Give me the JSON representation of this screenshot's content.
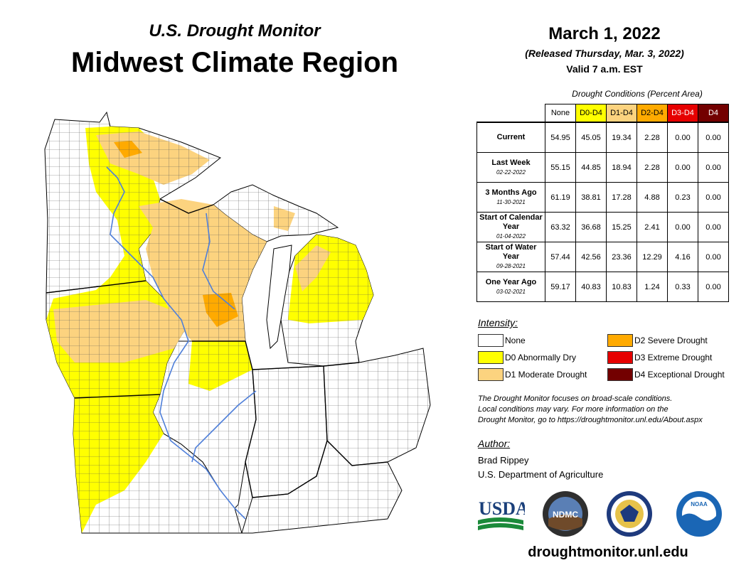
{
  "header": {
    "subtitle": "U.S. Drought Monitor",
    "title": "Midwest Climate Region",
    "date": "March 1, 2022",
    "released": "(Released Thursday, Mar. 3, 2022)",
    "valid": "Valid 7 a.m. EST"
  },
  "table": {
    "caption": "Drought Conditions (Percent Area)",
    "columns": [
      {
        "label": "None",
        "bg": "#ffffff",
        "fg": "#000000"
      },
      {
        "label": "D0-D4",
        "bg": "#ffff00",
        "fg": "#000000"
      },
      {
        "label": "D1-D4",
        "bg": "#fcd37f",
        "fg": "#000000"
      },
      {
        "label": "D2-D4",
        "bg": "#ffaa00",
        "fg": "#000000"
      },
      {
        "label": "D3-D4",
        "bg": "#e60000",
        "fg": "#ffffff"
      },
      {
        "label": "D4",
        "bg": "#730000",
        "fg": "#ffffff"
      }
    ],
    "rows": [
      {
        "label": "Current",
        "date": "",
        "values": [
          "54.95",
          "45.05",
          "19.34",
          "2.28",
          "0.00",
          "0.00"
        ]
      },
      {
        "label": "Last Week",
        "date": "02-22-2022",
        "values": [
          "55.15",
          "44.85",
          "18.94",
          "2.28",
          "0.00",
          "0.00"
        ]
      },
      {
        "label": "3 Months Ago",
        "date": "11-30-2021",
        "values": [
          "61.19",
          "38.81",
          "17.28",
          "4.88",
          "0.23",
          "0.00"
        ]
      },
      {
        "label": "Start of Calendar Year",
        "date": "01-04-2022",
        "values": [
          "63.32",
          "36.68",
          "15.25",
          "2.41",
          "0.00",
          "0.00"
        ]
      },
      {
        "label": "Start of Water Year",
        "date": "09-28-2021",
        "values": [
          "57.44",
          "42.56",
          "23.36",
          "12.29",
          "4.16",
          "0.00"
        ]
      },
      {
        "label": "One Year Ago",
        "date": "03-02-2021",
        "values": [
          "59.17",
          "40.83",
          "10.83",
          "1.24",
          "0.33",
          "0.00"
        ]
      }
    ]
  },
  "legend": {
    "heading": "Intensity:",
    "items": [
      {
        "label": "None",
        "color": "#ffffff"
      },
      {
        "label": "D0 Abnormally Dry",
        "color": "#ffff00"
      },
      {
        "label": "D1 Moderate Drought",
        "color": "#fcd37f"
      },
      {
        "label": "D2 Severe Drought",
        "color": "#ffaa00"
      },
      {
        "label": "D3 Extreme Drought",
        "color": "#e60000"
      },
      {
        "label": "D4 Exceptional Drought",
        "color": "#730000"
      }
    ]
  },
  "note": {
    "line1": "The Drought Monitor focuses on broad-scale conditions.",
    "line2": "Local conditions may vary. For more information on the",
    "line3": "Drought Monitor, go to https://droughtmonitor.unl.edu/About.aspx"
  },
  "author": {
    "heading": "Author:",
    "name": "Brad Rippey",
    "org": "U.S. Department of Agriculture"
  },
  "logos": {
    "usda": "USDA",
    "ndmc": "NDMC",
    "noaa": "NOAA"
  },
  "footer": {
    "url": "droughtmonitor.unl.edu"
  }
}
